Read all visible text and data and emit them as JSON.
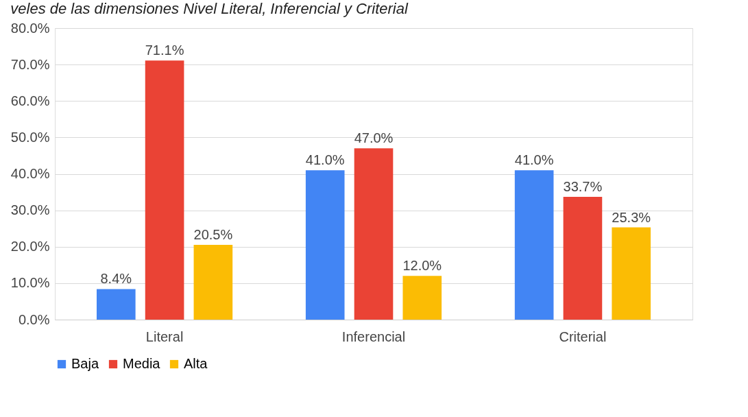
{
  "chart_data": {
    "type": "bar",
    "title": "veles de las dimensiones Nivel Literal, Inferencial y Criterial",
    "categories": [
      "Literal",
      "Inferencial",
      "Criterial"
    ],
    "series": [
      {
        "name": "Baja",
        "color": "#4285f4",
        "values": [
          8.4,
          41.0,
          41.0
        ],
        "value_labels": [
          "8.4%",
          "41.0%",
          "41.0%"
        ]
      },
      {
        "name": "Media",
        "color": "#ea4335",
        "values": [
          71.1,
          47.0,
          33.7
        ],
        "value_labels": [
          "71.1%",
          "47.0%",
          "33.7%"
        ]
      },
      {
        "name": "Alta",
        "color": "#fbbc04",
        "values": [
          20.5,
          12.0,
          25.3
        ],
        "value_labels": [
          "20.5%",
          "12.0%",
          "25.3%"
        ]
      }
    ],
    "ylim": [
      0,
      80
    ],
    "yticks": [
      {
        "value": 0,
        "label": "0.0%"
      },
      {
        "value": 10,
        "label": "10.0%"
      },
      {
        "value": 20,
        "label": "20.0%"
      },
      {
        "value": 30,
        "label": "30.0%"
      },
      {
        "value": 40,
        "label": "40.0%"
      },
      {
        "value": 50,
        "label": "50.0%"
      },
      {
        "value": 60,
        "label": "60.0%"
      },
      {
        "value": 70,
        "label": "70.0%"
      },
      {
        "value": 80,
        "label": "80.0%"
      }
    ],
    "grid": "y",
    "legend": "bottom"
  }
}
